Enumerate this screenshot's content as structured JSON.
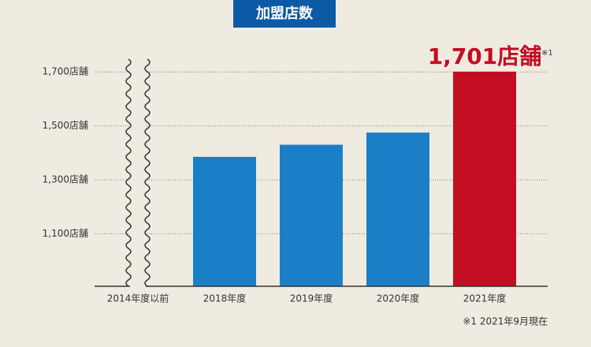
{
  "chart_data": {
    "type": "bar",
    "title": "加盟店数",
    "categories": [
      "2014年度以前",
      "2018年度",
      "2019年度",
      "2020年度",
      "2021年度"
    ],
    "values": [
      null,
      1385,
      1430,
      1475,
      1701
    ],
    "value_labels": [
      null,
      null,
      null,
      null,
      "1,701店舗"
    ],
    "colors": [
      null,
      "#1b7fc8",
      "#1b7fc8",
      "#1b7fc8",
      "#c30d23"
    ],
    "ylim": [
      905,
      1800
    ],
    "yticks": [
      {
        "value": 1100,
        "label": "1,100店舗"
      },
      {
        "value": 1300,
        "label": "1,300店舗"
      },
      {
        "value": 1500,
        "label": "1,500店舗"
      },
      {
        "value": 1700,
        "label": "1,700店舗"
      }
    ],
    "grid": true,
    "note_marker": "※1",
    "footnote": "※1 2021年9月現在"
  }
}
